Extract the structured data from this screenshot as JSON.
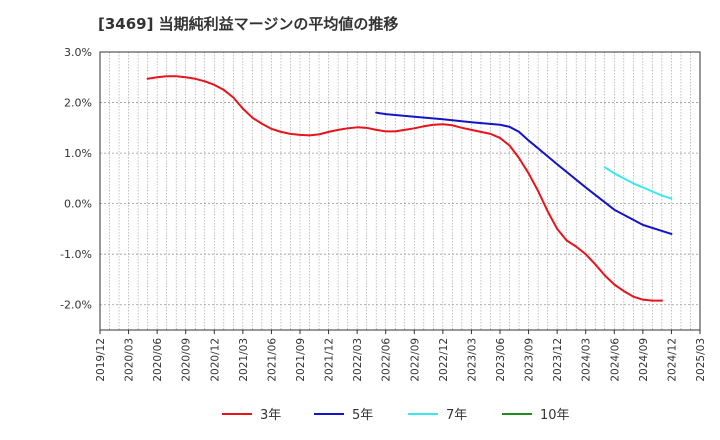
{
  "title": "[3469]  当期純利益マージンの平均値の推移",
  "chart_data": {
    "type": "line",
    "title": "[3469]  当期純利益マージンの平均値の推移",
    "xlabel": "",
    "ylabel": "",
    "ylim": [
      -2.5,
      3.0
    ],
    "y_ticks": [
      3.0,
      2.0,
      1.0,
      0.0,
      -1.0,
      -2.0
    ],
    "y_tick_labels": [
      "3.0%",
      "2.0%",
      "1.0%",
      "0.0%",
      "-1.0%",
      "-2.0%"
    ],
    "x_ticks": [
      "2019/12",
      "2020/03",
      "2020/06",
      "2020/09",
      "2020/12",
      "2021/03",
      "2021/06",
      "2021/09",
      "2021/12",
      "2022/03",
      "2022/06",
      "2022/09",
      "2022/12",
      "2023/03",
      "2023/06",
      "2023/09",
      "2023/12",
      "2024/03",
      "2024/06",
      "2024/09",
      "2024/12",
      "2025/03"
    ],
    "grid": true,
    "legend_position": "bottom",
    "colors": {
      "3年": "#e8141b",
      "5年": "#1414c8",
      "7年": "#3ce8f0",
      "10年": "#1e8c1e"
    },
    "series": [
      {
        "name": "3年",
        "color": "#e8141b",
        "points": [
          [
            "2020/05",
            2.47
          ],
          [
            "2020/06",
            2.5
          ],
          [
            "2020/07",
            2.52
          ],
          [
            "2020/08",
            2.52
          ],
          [
            "2020/09",
            2.5
          ],
          [
            "2020/10",
            2.47
          ],
          [
            "2020/11",
            2.42
          ],
          [
            "2020/12",
            2.35
          ],
          [
            "2021/01",
            2.25
          ],
          [
            "2021/02",
            2.1
          ],
          [
            "2021/03",
            1.88
          ],
          [
            "2021/04",
            1.7
          ],
          [
            "2021/05",
            1.58
          ],
          [
            "2021/06",
            1.48
          ],
          [
            "2021/07",
            1.42
          ],
          [
            "2021/08",
            1.38
          ],
          [
            "2021/09",
            1.36
          ],
          [
            "2021/10",
            1.35
          ],
          [
            "2021/11",
            1.37
          ],
          [
            "2021/12",
            1.42
          ],
          [
            "2022/01",
            1.46
          ],
          [
            "2022/02",
            1.49
          ],
          [
            "2022/03",
            1.51
          ],
          [
            "2022/04",
            1.5
          ],
          [
            "2022/05",
            1.46
          ],
          [
            "2022/06",
            1.43
          ],
          [
            "2022/07",
            1.43
          ],
          [
            "2022/08",
            1.46
          ],
          [
            "2022/09",
            1.49
          ],
          [
            "2022/10",
            1.53
          ],
          [
            "2022/11",
            1.56
          ],
          [
            "2022/12",
            1.57
          ],
          [
            "2023/01",
            1.55
          ],
          [
            "2023/02",
            1.5
          ],
          [
            "2023/03",
            1.46
          ],
          [
            "2023/04",
            1.42
          ],
          [
            "2023/05",
            1.38
          ],
          [
            "2023/06",
            1.3
          ],
          [
            "2023/07",
            1.15
          ],
          [
            "2023/08",
            0.9
          ],
          [
            "2023/09",
            0.6
          ],
          [
            "2023/10",
            0.25
          ],
          [
            "2023/11",
            -0.15
          ],
          [
            "2023/12",
            -0.5
          ],
          [
            "2024/01",
            -0.73
          ],
          [
            "2024/02",
            -0.85
          ],
          [
            "2024/03",
            -1.0
          ],
          [
            "2024/04",
            -1.2
          ],
          [
            "2024/05",
            -1.42
          ],
          [
            "2024/06",
            -1.6
          ],
          [
            "2024/07",
            -1.73
          ],
          [
            "2024/08",
            -1.84
          ],
          [
            "2024/09",
            -1.9
          ],
          [
            "2024/10",
            -1.92
          ],
          [
            "2024/11",
            -1.92
          ]
        ]
      },
      {
        "name": "5年",
        "color": "#1414c8",
        "points": [
          [
            "2022/05",
            1.8
          ],
          [
            "2022/06",
            1.77
          ],
          [
            "2022/09",
            1.72
          ],
          [
            "2022/12",
            1.67
          ],
          [
            "2023/03",
            1.61
          ],
          [
            "2023/06",
            1.56
          ],
          [
            "2023/07",
            1.52
          ],
          [
            "2023/08",
            1.42
          ],
          [
            "2023/09",
            1.25
          ],
          [
            "2023/12",
            0.78
          ],
          [
            "2024/03",
            0.32
          ],
          [
            "2024/06",
            -0.12
          ],
          [
            "2024/09",
            -0.42
          ],
          [
            "2024/11",
            -0.54
          ],
          [
            "2024/12",
            -0.6
          ]
        ]
      },
      {
        "name": "7年",
        "color": "#3ce8f0",
        "points": [
          [
            "2024/05",
            0.72
          ],
          [
            "2024/06",
            0.6
          ],
          [
            "2024/07",
            0.5
          ],
          [
            "2024/08",
            0.4
          ],
          [
            "2024/09",
            0.32
          ],
          [
            "2024/10",
            0.24
          ],
          [
            "2024/11",
            0.16
          ],
          [
            "2024/12",
            0.1
          ]
        ]
      },
      {
        "name": "10年",
        "color": "#1e8c1e",
        "points": []
      }
    ]
  },
  "legend": [
    {
      "label": "3年",
      "color": "#e8141b"
    },
    {
      "label": "5年",
      "color": "#1414c8"
    },
    {
      "label": "7年",
      "color": "#3ce8f0"
    },
    {
      "label": "10年",
      "color": "#1e8c1e"
    }
  ]
}
